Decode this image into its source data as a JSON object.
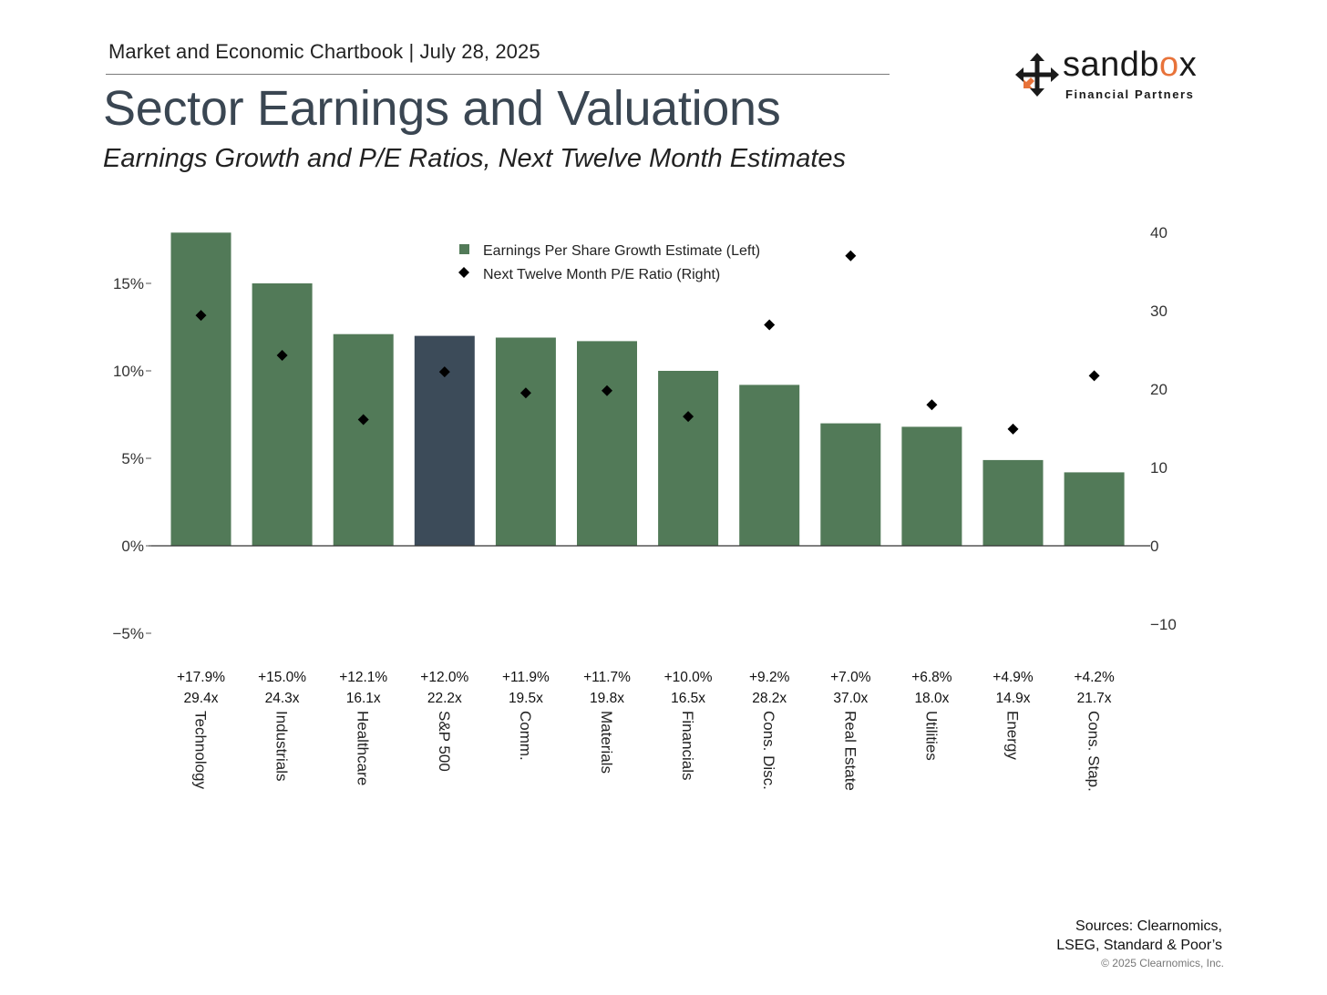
{
  "header": {
    "kicker": "Market and Economic Chartbook | July 28, 2025",
    "title": "Sector Earnings and Valuations",
    "subtitle": "Earnings Growth and P/E Ratios, Next Twelve Month Estimates"
  },
  "logo": {
    "wordmark_pre": "sandb",
    "wordmark_accent": "o",
    "wordmark_post": "x",
    "tagline": "Financial Partners",
    "icon": "sandbox-arrows-icon"
  },
  "footer": {
    "sources_line1": "Sources: Clearnomics,",
    "sources_line2": "LSEG, Standard & Poor’s",
    "copyright": "© 2025 Clearnomics, Inc."
  },
  "colors": {
    "bar": "#527a58",
    "highlight_bar": "#3c4b59",
    "marker": "#000000",
    "axis": "#333333",
    "logo_accent": "#e8733a"
  },
  "chart_data": {
    "type": "bar",
    "categories": [
      "Technology",
      "Industrials",
      "Healthcare",
      "S&P 500",
      "Comm.",
      "Materials",
      "Financials",
      "Cons. Disc.",
      "Real Estate",
      "Utilities",
      "Energy",
      "Cons. Stap."
    ],
    "highlight_category": "S&P 500",
    "series": [
      {
        "name": "Earnings Per Share Growth Estimate (Left)",
        "type": "bar",
        "axis": "left",
        "values": [
          17.9,
          15.0,
          12.1,
          12.0,
          11.9,
          11.7,
          10.0,
          9.2,
          7.0,
          6.8,
          4.9,
          4.2
        ]
      },
      {
        "name": "Next Twelve Month P/E Ratio (Right)",
        "type": "scatter",
        "marker": "diamond",
        "axis": "right",
        "values": [
          29.4,
          24.3,
          16.1,
          22.2,
          19.5,
          19.8,
          16.5,
          28.2,
          37.0,
          18.0,
          14.9,
          21.7
        ]
      }
    ],
    "value_labels": [
      [
        "+17.9%",
        "29.4x"
      ],
      [
        "+15.0%",
        "24.3x"
      ],
      [
        "+12.1%",
        "16.1x"
      ],
      [
        "+12.0%",
        "22.2x"
      ],
      [
        "+11.9%",
        "19.5x"
      ],
      [
        "+11.7%",
        "19.8x"
      ],
      [
        "+10.0%",
        "16.5x"
      ],
      [
        "+9.2%",
        "28.2x"
      ],
      [
        "+7.0%",
        "37.0x"
      ],
      [
        "+6.8%",
        "18.0x"
      ],
      [
        "+4.9%",
        "14.9x"
      ],
      [
        "+4.2%",
        "21.7x"
      ]
    ],
    "left_axis": {
      "ylim": [
        -5,
        17.9
      ],
      "ticks": [
        15,
        10,
        5,
        0,
        -5
      ],
      "tick_labels": [
        "15%",
        "10%",
        "5%",
        "0%",
        "−5%"
      ]
    },
    "right_axis": {
      "ylim": [
        -10,
        40
      ],
      "ticks": [
        40,
        30,
        20,
        10,
        0,
        -10
      ],
      "tick_labels": [
        "40",
        "30",
        "20",
        "10",
        "0",
        "−10"
      ]
    },
    "legend_position": "top-center",
    "grid": false
  }
}
